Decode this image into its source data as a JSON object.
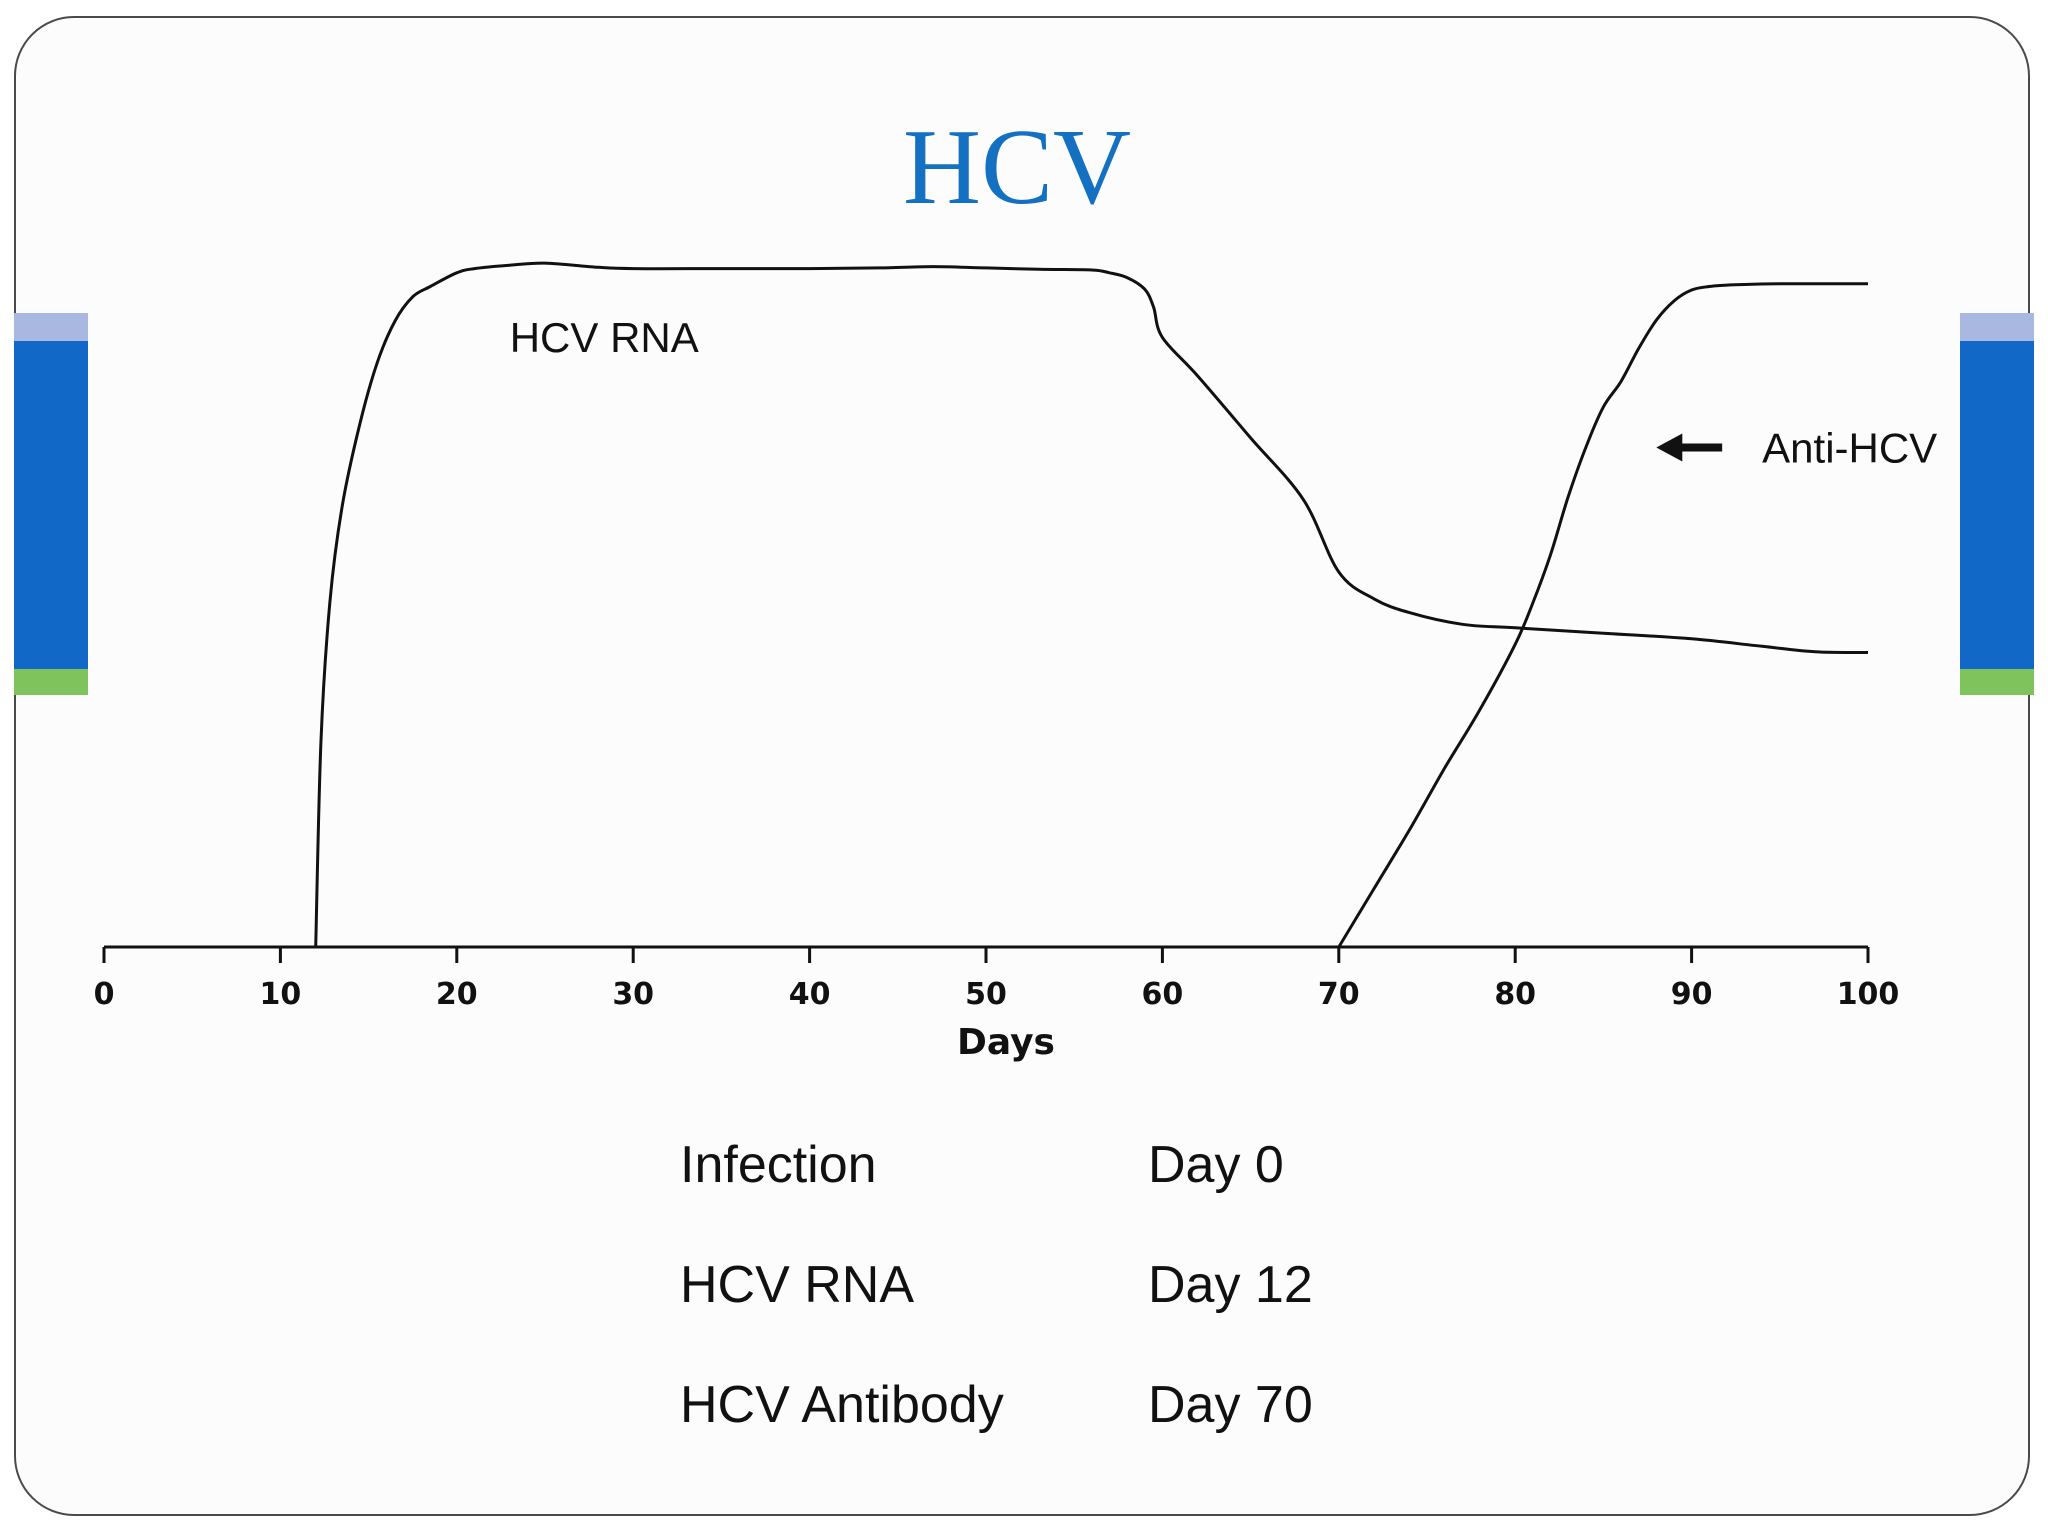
{
  "slide": {
    "title": "HCV",
    "title_color": "#1470c0",
    "accent_colors": {
      "light": "#a9b8e1",
      "main": "#1268c6",
      "green": "#7fc35c"
    }
  },
  "chart_data": {
    "type": "line",
    "xlabel": "Days",
    "ylabel": "",
    "xlim": [
      0,
      100
    ],
    "ylim": [
      0,
      100
    ],
    "y_axis_shown": false,
    "grid": false,
    "xticks": [
      0,
      10,
      20,
      30,
      40,
      50,
      60,
      70,
      80,
      90,
      100
    ],
    "series": [
      {
        "name": "HCV RNA",
        "x": [
          12,
          12.3,
          12.8,
          13.5,
          14.5,
          15.5,
          16.5,
          17.5,
          18.5,
          20,
          21,
          23,
          25,
          28,
          30,
          35,
          40,
          44,
          47,
          50,
          53,
          56,
          57,
          58,
          59,
          59.5,
          60,
          62,
          65,
          68,
          70,
          72,
          74,
          77,
          80,
          85,
          90,
          94,
          97,
          100
        ],
        "y": [
          0,
          30,
          50,
          64,
          76,
          85,
          91,
          94.5,
          96,
          98,
          98.6,
          99.1,
          99.4,
          98.8,
          98.6,
          98.6,
          98.6,
          98.7,
          98.9,
          98.7,
          98.5,
          98.4,
          98,
          97.3,
          95.6,
          93,
          88.6,
          83,
          74,
          65,
          54.5,
          50.6,
          48.6,
          46.9,
          46.4,
          45.6,
          44.8,
          43.7,
          42.9,
          42.8
        ]
      },
      {
        "name": "Anti-HCV",
        "x": [
          70,
          72,
          74,
          76,
          78,
          80,
          81,
          82,
          83,
          84,
          85,
          86,
          87,
          88,
          89,
          90,
          91,
          92,
          93,
          95,
          97,
          100
        ],
        "y": [
          0,
          8.5,
          17,
          26,
          34.5,
          44,
          50,
          57,
          65.4,
          72.6,
          78.5,
          82.2,
          87,
          91.1,
          93.9,
          95.5,
          96,
          96.2,
          96.3,
          96.4,
          96.4,
          96.4
        ]
      }
    ],
    "annotations": [
      {
        "text": "HCV RNA",
        "x": 23,
        "y": 86.5
      },
      {
        "text": "Anti-HCV",
        "x": 94,
        "y": 72.6,
        "arrow_to_x": 88
      }
    ]
  },
  "timeline": [
    {
      "event": "Infection",
      "day": "Day 0"
    },
    {
      "event": "HCV RNA",
      "day": "Day 12"
    },
    {
      "event": "HCV Antibody",
      "day": "Day 70"
    }
  ]
}
